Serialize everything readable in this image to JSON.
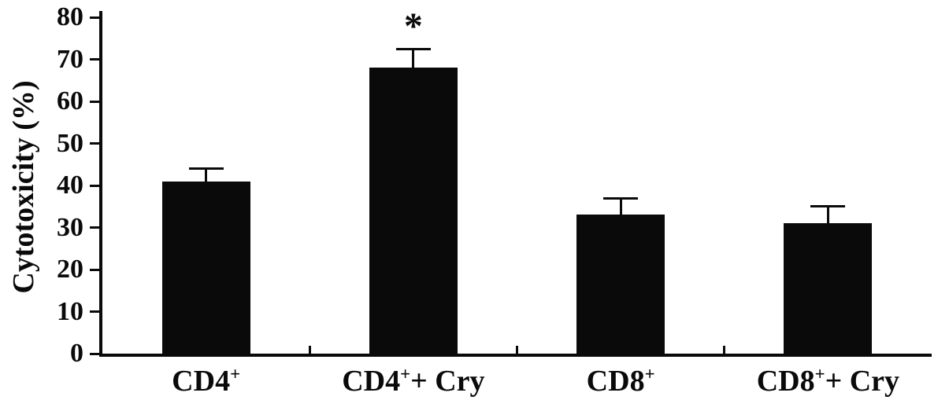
{
  "chart_data": {
    "type": "bar",
    "title": "",
    "xlabel": "",
    "ylabel": "Cytotoxicity (%)",
    "ylim": [
      0,
      80
    ],
    "yticks": [
      0,
      10,
      20,
      30,
      40,
      50,
      60,
      70,
      80
    ],
    "categories": [
      {
        "base": "CD4",
        "sup": "+",
        "rest": ""
      },
      {
        "base": "CD4",
        "sup": "+",
        "rest": "+ Cry"
      },
      {
        "base": "CD8",
        "sup": "+",
        "rest": ""
      },
      {
        "base": "CD8",
        "sup": "+",
        "rest": "+ Cry"
      }
    ],
    "values": [
      41,
      68,
      33,
      31
    ],
    "errors": [
      3,
      4.5,
      4,
      4
    ],
    "significance": [
      "",
      "*",
      "",
      ""
    ],
    "bar_color": "#0a0a0a",
    "axis_color": "#0a0a0a",
    "grid": false,
    "legend": false
  }
}
